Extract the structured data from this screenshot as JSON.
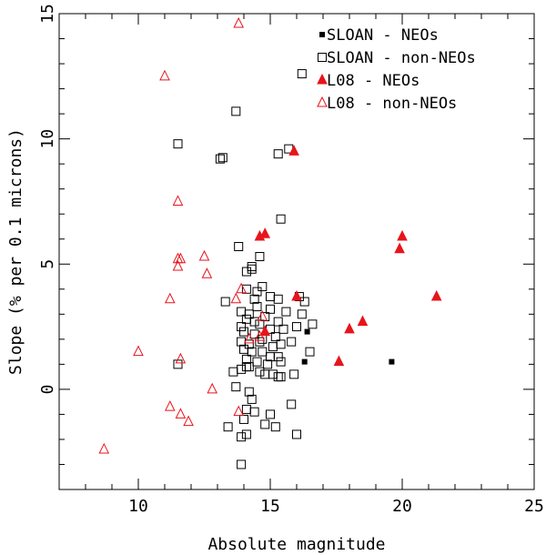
{
  "chart_data": {
    "type": "scatter",
    "title": "",
    "xlabel": "Absolute magnitude",
    "ylabel": "Slope (% per 0.1 microns)",
    "xlim": [
      7,
      25
    ],
    "ylim": [
      -4,
      15
    ],
    "xticks": [
      10,
      15,
      20,
      25
    ],
    "yticks": [
      0,
      5,
      10,
      15
    ],
    "grid": false,
    "legend_position": "top-right",
    "colors": {
      "black": "#000000",
      "red": "#e8141b"
    },
    "series": [
      {
        "name": "SLOAN - NEOs",
        "marker": "square",
        "filled": true,
        "color": "black",
        "points": [
          [
            16.3,
            1.1
          ],
          [
            16.4,
            2.3
          ],
          [
            19.6,
            1.1
          ]
        ]
      },
      {
        "name": "SLOAN - non-NEOs",
        "marker": "square",
        "filled": false,
        "color": "black",
        "points": [
          [
            13.7,
            11.1
          ],
          [
            16.2,
            12.6
          ],
          [
            15.7,
            9.6
          ],
          [
            15.3,
            9.4
          ],
          [
            11.5,
            9.8
          ],
          [
            13.1,
            9.2
          ],
          [
            13.2,
            9.25
          ],
          [
            15.4,
            6.8
          ],
          [
            13.8,
            5.7
          ],
          [
            14.6,
            5.3
          ],
          [
            14.1,
            4.7
          ],
          [
            14.3,
            4.8
          ],
          [
            14.3,
            4.9
          ],
          [
            14.7,
            4.1
          ],
          [
            14.1,
            4.0
          ],
          [
            14.5,
            3.9
          ],
          [
            14.4,
            3.6
          ],
          [
            15.0,
            3.7
          ],
          [
            15.3,
            3.6
          ],
          [
            16.1,
            3.7
          ],
          [
            16.3,
            3.5
          ],
          [
            13.3,
            3.5
          ],
          [
            13.9,
            3.1
          ],
          [
            14.2,
            3.0
          ],
          [
            14.5,
            3.3
          ],
          [
            15.0,
            3.2
          ],
          [
            15.6,
            3.1
          ],
          [
            16.2,
            3.0
          ],
          [
            14.1,
            2.8
          ],
          [
            14.4,
            2.7
          ],
          [
            14.8,
            2.9
          ],
          [
            15.3,
            2.7
          ],
          [
            16.6,
            2.6
          ],
          [
            13.9,
            2.5
          ],
          [
            14.6,
            2.6
          ],
          [
            15.0,
            2.4
          ],
          [
            15.5,
            2.4
          ],
          [
            16.0,
            2.5
          ],
          [
            14.0,
            2.3
          ],
          [
            14.4,
            2.2
          ],
          [
            14.7,
            2.0
          ],
          [
            15.2,
            2.1
          ],
          [
            15.8,
            1.9
          ],
          [
            13.9,
            1.9
          ],
          [
            14.2,
            1.8
          ],
          [
            14.6,
            1.9
          ],
          [
            15.1,
            1.7
          ],
          [
            15.4,
            1.8
          ],
          [
            14.0,
            1.6
          ],
          [
            14.3,
            1.5
          ],
          [
            14.7,
            1.5
          ],
          [
            15.0,
            1.3
          ],
          [
            15.3,
            1.3
          ],
          [
            16.5,
            1.5
          ],
          [
            14.1,
            1.2
          ],
          [
            14.5,
            1.1
          ],
          [
            14.9,
            1.0
          ],
          [
            15.4,
            1.1
          ],
          [
            11.5,
            1.0
          ],
          [
            13.9,
            0.8
          ],
          [
            14.2,
            0.9
          ],
          [
            14.6,
            0.7
          ],
          [
            15.1,
            0.6
          ],
          [
            15.4,
            0.5
          ],
          [
            13.6,
            0.7
          ],
          [
            14.1,
            0.9
          ],
          [
            14.8,
            0.6
          ],
          [
            15.3,
            0.5
          ],
          [
            15.9,
            0.6
          ],
          [
            13.7,
            0.1
          ],
          [
            14.2,
            -0.1
          ],
          [
            14.3,
            -0.4
          ],
          [
            15.8,
            -0.6
          ],
          [
            14.1,
            -0.8
          ],
          [
            14.4,
            -0.9
          ],
          [
            15.0,
            -1.0
          ],
          [
            14.0,
            -1.2
          ],
          [
            13.4,
            -1.5
          ],
          [
            14.8,
            -1.4
          ],
          [
            15.2,
            -1.5
          ],
          [
            16.0,
            -1.8
          ],
          [
            14.1,
            -1.8
          ],
          [
            13.9,
            -1.9
          ],
          [
            13.9,
            -3.0
          ]
        ]
      },
      {
        "name": "L08 - NEOs",
        "marker": "triangle",
        "filled": true,
        "color": "red",
        "points": [
          [
            15.9,
            9.5
          ],
          [
            14.8,
            6.2
          ],
          [
            14.6,
            6.1
          ],
          [
            20.0,
            6.1
          ],
          [
            19.9,
            5.6
          ],
          [
            21.3,
            3.7
          ],
          [
            16.0,
            3.7
          ],
          [
            18.5,
            2.7
          ],
          [
            18.0,
            2.4
          ],
          [
            14.8,
            2.3
          ],
          [
            17.6,
            1.1
          ]
        ]
      },
      {
        "name": "L08 - non-NEOs",
        "marker": "triangle",
        "filled": false,
        "color": "red",
        "points": [
          [
            13.8,
            14.6
          ],
          [
            11.0,
            12.5
          ],
          [
            11.5,
            7.5
          ],
          [
            11.6,
            5.2
          ],
          [
            11.5,
            5.2
          ],
          [
            12.5,
            5.3
          ],
          [
            11.5,
            4.9
          ],
          [
            12.6,
            4.6
          ],
          [
            13.9,
            4.0
          ],
          [
            13.7,
            3.6
          ],
          [
            11.2,
            3.6
          ],
          [
            14.7,
            2.9
          ],
          [
            14.2,
            2.0
          ],
          [
            14.6,
            2.1
          ],
          [
            10.0,
            1.5
          ],
          [
            11.6,
            1.2
          ],
          [
            12.8,
            0.0
          ],
          [
            11.2,
            -0.7
          ],
          [
            11.6,
            -1.0
          ],
          [
            11.9,
            -1.3
          ],
          [
            13.8,
            -0.9
          ],
          [
            8.7,
            -2.4
          ]
        ]
      }
    ]
  }
}
